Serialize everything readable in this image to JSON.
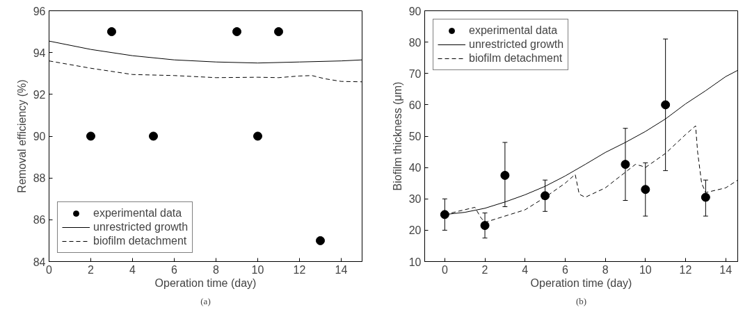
{
  "chart_data": [
    {
      "type": "scatter",
      "xlabel": "Operation time (day)",
      "ylabel": "Removal efficiency (%)",
      "annotations": [
        "(a)"
      ],
      "xlim": [
        0,
        15
      ],
      "ylim": [
        84,
        96
      ],
      "xticks": [
        0,
        2,
        4,
        6,
        8,
        10,
        12,
        14
      ],
      "yticks": [
        84,
        86,
        88,
        90,
        92,
        94,
        96
      ],
      "grid": false,
      "legend": "bottom left",
      "series": [
        {
          "name": "experimental data",
          "marker": "circle",
          "color": "#000000",
          "x": [
            2,
            3,
            5,
            9,
            10,
            11,
            13
          ],
          "values": [
            90,
            95,
            90,
            95,
            90,
            95,
            85
          ]
        },
        {
          "name": "unrestricted growth",
          "type": "line",
          "line_style": "solid",
          "color": "#000000",
          "x": [
            0,
            2,
            4,
            6,
            8,
            10,
            12,
            14,
            15
          ],
          "values": [
            94.55,
            94.15,
            93.85,
            93.65,
            93.55,
            93.5,
            93.55,
            93.6,
            93.65
          ]
        },
        {
          "name": "biofilm detachment",
          "type": "line",
          "line_style": "dashed",
          "color": "#000000",
          "x": [
            0,
            2,
            4,
            6,
            8,
            10,
            11,
            12,
            12.6,
            13.2,
            14,
            15
          ],
          "values": [
            93.6,
            93.25,
            92.95,
            92.9,
            92.8,
            92.82,
            92.8,
            92.88,
            92.9,
            92.75,
            92.62,
            92.6
          ]
        }
      ]
    },
    {
      "type": "scatter",
      "xlabel": "Operation time (day)",
      "ylabel": "Biofilm thickness (μm)",
      "annotations": [
        "(b)"
      ],
      "xlim": [
        -1,
        14.6
      ],
      "ylim": [
        10,
        90
      ],
      "xticks": [
        0,
        2,
        4,
        6,
        8,
        10,
        12,
        14
      ],
      "yticks": [
        10,
        20,
        30,
        40,
        50,
        60,
        70,
        80,
        90
      ],
      "grid": false,
      "legend": "top left",
      "series": [
        {
          "name": "experimental data",
          "marker": "circle",
          "color": "#000000",
          "x": [
            0,
            2,
            3,
            5,
            9,
            10,
            11,
            13
          ],
          "values": [
            25,
            21.5,
            37.5,
            31,
            41,
            33,
            60,
            30.5
          ],
          "errors": [
            [
              20,
              30
            ],
            [
              17.5,
              25.5
            ],
            [
              27.5,
              48
            ],
            [
              26,
              36
            ],
            [
              29.5,
              52.5
            ],
            [
              24.5,
              41.5
            ],
            [
              39,
              81
            ],
            [
              24.5,
              36
            ]
          ]
        },
        {
          "name": "unrestricted growth",
          "type": "line",
          "line_style": "solid",
          "color": "#000000",
          "x": [
            0,
            1,
            2,
            3,
            4,
            5,
            6,
            7,
            8,
            9,
            10,
            11,
            12,
            13,
            14,
            14.6
          ],
          "values": [
            25,
            25.7,
            27,
            29,
            31.3,
            34,
            37.3,
            41,
            44.8,
            48,
            51.5,
            55.5,
            60.3,
            64.5,
            69,
            71
          ]
        },
        {
          "name": "biofilm detachment",
          "type": "line",
          "line_style": "dashed",
          "color": "#000000",
          "x": [
            0,
            1.5,
            1.8,
            2,
            4,
            5,
            6,
            6.5,
            6.7,
            7,
            8,
            9,
            9.5,
            9.8,
            10,
            11,
            12,
            12.5,
            12.6,
            12.8,
            13,
            14,
            14.6
          ],
          "values": [
            25,
            27.3,
            24,
            22.5,
            26.5,
            30.5,
            35,
            37.8,
            31.5,
            30.5,
            33.5,
            38.5,
            41,
            40.5,
            40,
            44.5,
            50.5,
            53.3,
            45,
            35,
            32,
            33.5,
            36
          ]
        }
      ]
    }
  ]
}
